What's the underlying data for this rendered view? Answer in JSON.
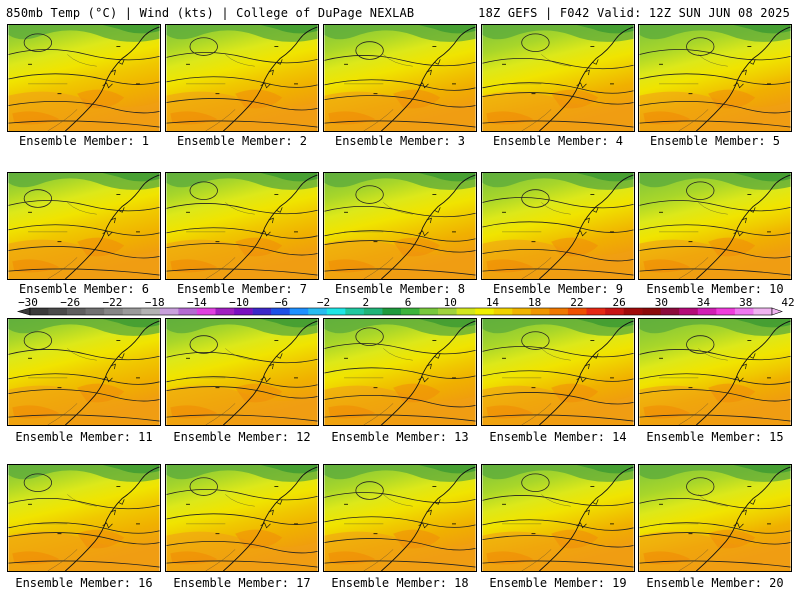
{
  "header": {
    "left": "850mb Temp (°C) | Wind (kts) | College of DuPage NEXLAB",
    "right": "18Z GEFS | F042 Valid: 12Z SUN JUN 08 2025"
  },
  "panels": [
    {
      "label": "Ensemble Member: 1"
    },
    {
      "label": "Ensemble Member: 2"
    },
    {
      "label": "Ensemble Member: 3"
    },
    {
      "label": "Ensemble Member: 4"
    },
    {
      "label": "Ensemble Member: 5"
    },
    {
      "label": "Ensemble Member: 6"
    },
    {
      "label": "Ensemble Member: 7"
    },
    {
      "label": "Ensemble Member: 8"
    },
    {
      "label": "Ensemble Member: 9"
    },
    {
      "label": "Ensemble Member: 10"
    },
    {
      "label": "Ensemble Member: 11"
    },
    {
      "label": "Ensemble Member: 12"
    },
    {
      "label": "Ensemble Member: 13"
    },
    {
      "label": "Ensemble Member: 14"
    },
    {
      "label": "Ensemble Member: 15"
    },
    {
      "label": "Ensemble Member: 16"
    },
    {
      "label": "Ensemble Member: 17"
    },
    {
      "label": "Ensemble Member: 18"
    },
    {
      "label": "Ensemble Member: 19"
    },
    {
      "label": "Ensemble Member: 20"
    }
  ],
  "colorbar": {
    "ticks": [
      "-30",
      "-26",
      "-22",
      "-18",
      "-14",
      "-10",
      "-6",
      "-2",
      "2",
      "6",
      "10",
      "14",
      "18",
      "22",
      "26",
      "30",
      "34",
      "38",
      "42"
    ],
    "colors": [
      "#3a3a3a",
      "#4a4a4a",
      "#5e5e5e",
      "#717171",
      "#868686",
      "#9a9a9a",
      "#b2b2b2",
      "#c9a0dc",
      "#b46ad2",
      "#e040e0",
      "#a020c0",
      "#7a10c0",
      "#3c28c8",
      "#1e50e6",
      "#1e90ff",
      "#28bcf0",
      "#1ee6e6",
      "#20c8a0",
      "#20b478",
      "#1e9a3c",
      "#3cb43c",
      "#78c83c",
      "#a0d23c",
      "#d2e61e",
      "#f0f000",
      "#f0d200",
      "#f0b400",
      "#f09600",
      "#f07800",
      "#f05000",
      "#e62814",
      "#c81414",
      "#a00a0a",
      "#8c0a0a",
      "#8c0a3c",
      "#b40a78",
      "#d21eb4",
      "#f03cdc",
      "#f078f0",
      "#f0b4f0"
    ]
  }
}
